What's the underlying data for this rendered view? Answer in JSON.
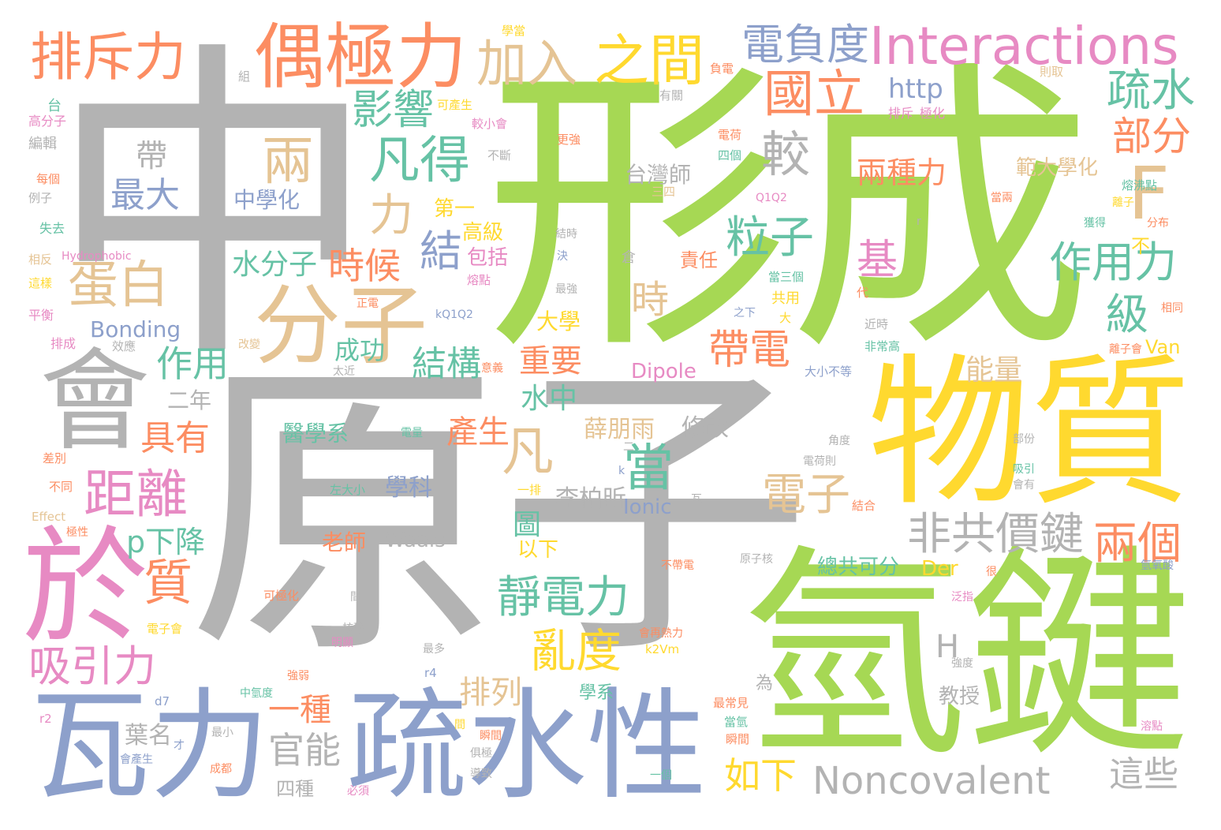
{
  "palette": {
    "green": "#a6d854",
    "gray": "#b3b3b3",
    "yellow": "#ffd92f",
    "blue": "#8da0cb",
    "orange": "#fc8d62",
    "pink": "#e78ac3",
    "tan": "#e5c494",
    "teal": "#66c2a5"
  },
  "words": [
    {
      "text": "中",
      "color": "gray"
    },
    {
      "text": "形成",
      "color": "green"
    },
    {
      "text": "原子",
      "color": "gray"
    },
    {
      "text": "氫鍵",
      "color": "green"
    },
    {
      "text": "物質",
      "color": "yellow"
    },
    {
      "text": "瓦力",
      "color": "blue"
    },
    {
      "text": "疏水性",
      "color": "blue"
    },
    {
      "text": "於",
      "color": "pink"
    },
    {
      "text": "會",
      "color": "gray"
    },
    {
      "text": "分子",
      "color": "tan"
    },
    {
      "text": "偶極力",
      "color": "orange"
    },
    {
      "text": "Interactions",
      "color": "pink"
    },
    {
      "text": "排斥力",
      "color": "orange"
    },
    {
      "text": "加入",
      "color": "tan"
    },
    {
      "text": "之間",
      "color": "yellow"
    },
    {
      "text": "電負度",
      "color": "blue"
    },
    {
      "text": "國立",
      "color": "orange"
    },
    {
      "text": "疏水",
      "color": "teal"
    },
    {
      "text": "部分",
      "color": "orange"
    },
    {
      "text": "F",
      "color": "tan"
    },
    {
      "text": "兩",
      "color": "tan"
    },
    {
      "text": "凡得",
      "color": "teal"
    },
    {
      "text": "影響",
      "color": "teal"
    },
    {
      "text": "較",
      "color": "gray"
    },
    {
      "text": "http",
      "color": "blue"
    },
    {
      "text": "力",
      "color": "tan"
    },
    {
      "text": "蛋白",
      "color": "tan"
    },
    {
      "text": "帶",
      "color": "gray"
    },
    {
      "text": "最大",
      "color": "blue"
    },
    {
      "text": "中學化",
      "color": "blue"
    },
    {
      "text": "台灣師",
      "color": "gray"
    },
    {
      "text": "兩種力",
      "color": "orange"
    },
    {
      "text": "範大學化",
      "color": "tan"
    },
    {
      "text": "粒子",
      "color": "teal"
    },
    {
      "text": "基",
      "color": "pink"
    },
    {
      "text": "作用力",
      "color": "teal"
    },
    {
      "text": "結",
      "color": "blue"
    },
    {
      "text": "第一",
      "color": "yellow"
    },
    {
      "text": "高級",
      "color": "yellow"
    },
    {
      "text": "包括",
      "color": "pink"
    },
    {
      "text": "時候",
      "color": "orange"
    },
    {
      "text": "水分子",
      "color": "teal"
    },
    {
      "text": "時",
      "color": "tan"
    },
    {
      "text": "責任",
      "color": "orange"
    },
    {
      "text": "級",
      "color": "teal"
    },
    {
      "text": "不",
      "color": "yellow"
    },
    {
      "text": "帶電",
      "color": "orange"
    },
    {
      "text": "作用",
      "color": "teal"
    },
    {
      "text": "結構",
      "color": "teal"
    },
    {
      "text": "成功",
      "color": "teal"
    },
    {
      "text": "重要",
      "color": "orange"
    },
    {
      "text": "大學",
      "color": "yellow"
    },
    {
      "text": "Bonding",
      "color": "blue"
    },
    {
      "text": "Dipole",
      "color": "pink"
    },
    {
      "text": "能量",
      "color": "tan"
    },
    {
      "text": "Van",
      "color": "yellow"
    },
    {
      "text": "水中",
      "color": "teal"
    },
    {
      "text": "二年",
      "color": "gray"
    },
    {
      "text": "具有",
      "color": "orange"
    },
    {
      "text": "產生",
      "color": "orange"
    },
    {
      "text": "醫學系",
      "color": "teal"
    },
    {
      "text": "薛朋雨",
      "color": "tan"
    },
    {
      "text": "修改",
      "color": "gray"
    },
    {
      "text": "凡",
      "color": "tan"
    },
    {
      "text": "當",
      "color": "teal"
    },
    {
      "text": "距離",
      "color": "pink"
    },
    {
      "text": "學科",
      "color": "blue"
    },
    {
      "text": "李柏昕",
      "color": "gray"
    },
    {
      "text": "電子",
      "color": "tan"
    },
    {
      "text": "非共價鍵",
      "color": "gray"
    },
    {
      "text": "兩個",
      "color": "orange"
    },
    {
      "text": "p下降",
      "color": "teal"
    },
    {
      "text": "圖",
      "color": "teal"
    },
    {
      "text": "Ionic",
      "color": "blue"
    },
    {
      "text": "老師",
      "color": "orange"
    },
    {
      "text": "Waals",
      "color": "gray"
    },
    {
      "text": "以下",
      "color": "yellow"
    },
    {
      "text": "靜電力",
      "color": "teal"
    },
    {
      "text": "Der",
      "color": "yellow"
    },
    {
      "text": "總共可分",
      "color": "teal"
    },
    {
      "text": "質",
      "color": "orange"
    },
    {
      "text": "亂度",
      "color": "yellow"
    },
    {
      "text": "H",
      "color": "gray"
    },
    {
      "text": "吸引力",
      "color": "pink"
    },
    {
      "text": "排列",
      "color": "tan"
    },
    {
      "text": "一種",
      "color": "orange"
    },
    {
      "text": "學系",
      "color": "teal"
    },
    {
      "text": "教授",
      "color": "gray"
    },
    {
      "text": "葉名",
      "color": "gray"
    },
    {
      "text": "官能",
      "color": "gray"
    },
    {
      "text": "如下",
      "color": "yellow"
    },
    {
      "text": "Noncovalent",
      "color": "gray"
    },
    {
      "text": "這些",
      "color": "gray"
    },
    {
      "text": "四種",
      "color": "gray"
    },
    {
      "text": "學當",
      "color": "yellow"
    },
    {
      "text": "負電",
      "color": "orange"
    },
    {
      "text": "則取",
      "color": "tan"
    },
    {
      "text": "組",
      "color": "gray"
    },
    {
      "text": "有關",
      "color": "gray"
    },
    {
      "text": "台",
      "color": "teal"
    },
    {
      "text": "高分子",
      "color": "pink"
    },
    {
      "text": "可產生",
      "color": "yellow"
    },
    {
      "text": "排斥",
      "color": "pink"
    },
    {
      "text": "極化",
      "color": "pink"
    },
    {
      "text": "編輯",
      "color": "gray"
    },
    {
      "text": "較小會",
      "color": "pink"
    },
    {
      "text": "更強",
      "color": "orange"
    },
    {
      "text": "電荷",
      "color": "orange"
    },
    {
      "text": "不斷",
      "color": "gray"
    },
    {
      "text": "四個",
      "color": "teal"
    },
    {
      "text": "每個",
      "color": "orange"
    },
    {
      "text": "例子",
      "color": "gray"
    },
    {
      "text": "熔沸點",
      "color": "teal"
    },
    {
      "text": "三四",
      "color": "tan"
    },
    {
      "text": "當兩",
      "color": "orange"
    },
    {
      "text": "Q1Q2",
      "color": "pink"
    },
    {
      "text": "離子",
      "color": "yellow"
    },
    {
      "text": "獲得",
      "color": "teal"
    },
    {
      "text": "分布",
      "color": "orange"
    },
    {
      "text": "失去",
      "color": "teal"
    },
    {
      "text": "結時",
      "color": "gray"
    },
    {
      "text": "r",
      "color": "gray"
    },
    {
      "text": "相反",
      "color": "tan"
    },
    {
      "text": "Hydrophobic",
      "color": "pink"
    },
    {
      "text": "決",
      "color": "blue"
    },
    {
      "text": "倉",
      "color": "gray"
    },
    {
      "text": "熔點",
      "color": "pink"
    },
    {
      "text": "當三個",
      "color": "teal"
    },
    {
      "text": "這樣",
      "color": "yellow"
    },
    {
      "text": "正電",
      "color": "orange"
    },
    {
      "text": "最強",
      "color": "gray"
    },
    {
      "text": "共用",
      "color": "yellow"
    },
    {
      "text": "代",
      "color": "orange"
    },
    {
      "text": "相同",
      "color": "orange"
    },
    {
      "text": "平衡",
      "color": "pink"
    },
    {
      "text": "kQ1Q2",
      "color": "blue"
    },
    {
      "text": "之下",
      "color": "blue"
    },
    {
      "text": "大",
      "color": "yellow"
    },
    {
      "text": "近時",
      "color": "gray"
    },
    {
      "text": "排成",
      "color": "pink"
    },
    {
      "text": "效應",
      "color": "gray"
    },
    {
      "text": "改變",
      "color": "tan"
    },
    {
      "text": "非常高",
      "color": "teal"
    },
    {
      "text": "離子會",
      "color": "orange"
    },
    {
      "text": "太近",
      "color": "gray"
    },
    {
      "text": "意義",
      "color": "orange"
    },
    {
      "text": "大小不等",
      "color": "blue"
    },
    {
      "text": "角度",
      "color": "gray"
    },
    {
      "text": "電量",
      "color": "teal"
    },
    {
      "text": "部份",
      "color": "gray"
    },
    {
      "text": "差別",
      "color": "orange"
    },
    {
      "text": "電荷則",
      "color": "gray"
    },
    {
      "text": "吸引",
      "color": "teal"
    },
    {
      "text": "會有",
      "color": "gray"
    },
    {
      "text": "k",
      "color": "blue"
    },
    {
      "text": "二",
      "color": "gray"
    },
    {
      "text": "不同",
      "color": "orange"
    },
    {
      "text": "左大小",
      "color": "teal"
    },
    {
      "text": "一排",
      "color": "yellow"
    },
    {
      "text": "結合",
      "color": "orange"
    },
    {
      "text": "瓦",
      "color": "gray"
    },
    {
      "text": "Effect",
      "color": "tan"
    },
    {
      "text": "極性",
      "color": "orange"
    },
    {
      "text": "不帶電",
      "color": "orange"
    },
    {
      "text": "原子核",
      "color": "gray"
    },
    {
      "text": "氫氧酸",
      "color": "blue"
    },
    {
      "text": "很",
      "color": "orange"
    },
    {
      "text": "可極化",
      "color": "orange"
    },
    {
      "text": "間",
      "color": "gray"
    },
    {
      "text": "泛指",
      "color": "pink"
    },
    {
      "text": "電子會",
      "color": "yellow"
    },
    {
      "text": "核酸",
      "color": "gray"
    },
    {
      "text": "會再熱力",
      "color": "orange"
    },
    {
      "text": "明顯",
      "color": "pink"
    },
    {
      "text": "k2Vm",
      "color": "yellow"
    },
    {
      "text": "最多",
      "color": "gray"
    },
    {
      "text": "r4",
      "color": "blue"
    },
    {
      "text": "強度",
      "color": "gray"
    },
    {
      "text": "強弱",
      "color": "orange"
    },
    {
      "text": "中氫度",
      "color": "teal"
    },
    {
      "text": "為",
      "color": "gray"
    },
    {
      "text": "最常見",
      "color": "orange"
    },
    {
      "text": "d7",
      "color": "blue"
    },
    {
      "text": "當氫",
      "color": "teal"
    },
    {
      "text": "瞬間",
      "color": "orange"
    },
    {
      "text": "溶點",
      "color": "pink"
    },
    {
      "text": "r2",
      "color": "pink"
    },
    {
      "text": "最小",
      "color": "gray"
    },
    {
      "text": "才",
      "color": "blue"
    },
    {
      "text": "會產生",
      "color": "blue"
    },
    {
      "text": "成都",
      "color": "orange"
    },
    {
      "text": "俱極",
      "color": "gray"
    },
    {
      "text": "瞬間",
      "color": "orange"
    },
    {
      "text": "一個",
      "color": "teal"
    },
    {
      "text": "必須",
      "color": "pink"
    },
    {
      "text": "導致",
      "color": "gray"
    },
    {
      "text": "間",
      "color": "yellow"
    }
  ]
}
